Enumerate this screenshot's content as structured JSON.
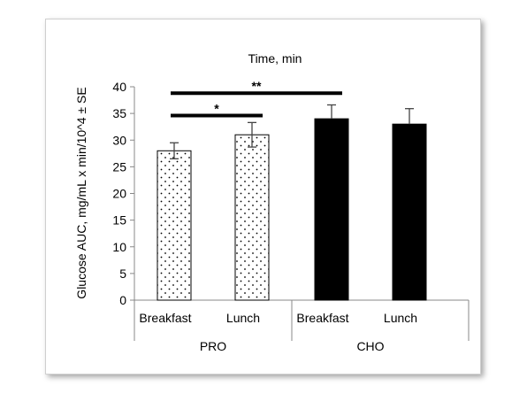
{
  "chart_data": {
    "type": "bar",
    "title": "Time, min",
    "ylabel": "Glucose AUC, mg/mL x min/10^4 ± SE",
    "ylim": [
      0,
      40
    ],
    "yticks": [
      0,
      5,
      10,
      15,
      20,
      25,
      30,
      35,
      40
    ],
    "categories": [
      "Breakfast",
      "Lunch",
      "Breakfast",
      "Lunch"
    ],
    "groups": [
      {
        "name": "PRO",
        "categories": [
          "Breakfast",
          "Lunch"
        ]
      },
      {
        "name": "CHO",
        "categories": [
          "Breakfast",
          "Lunch"
        ]
      }
    ],
    "values": [
      28,
      31,
      34,
      33
    ],
    "errors": [
      1.5,
      2.3,
      2.6,
      2.9
    ],
    "fills": [
      "dotted",
      "dotted",
      "black",
      "black"
    ],
    "significance": [
      {
        "label": "*",
        "from": 0,
        "to": 1,
        "y": 34.6
      },
      {
        "label": "**",
        "from": 0,
        "to": 2,
        "y": 38.8
      }
    ],
    "legend": "none",
    "grid": false
  },
  "colors": {
    "bar_dotted_fill": "#ffffff",
    "bar_solid_fill": "#000000",
    "axis": "#888888",
    "text": "#000000"
  }
}
